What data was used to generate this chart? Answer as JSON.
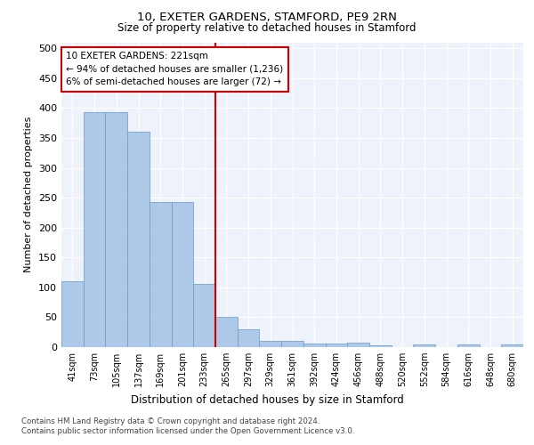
{
  "title1": "10, EXETER GARDENS, STAMFORD, PE9 2RN",
  "title2": "Size of property relative to detached houses in Stamford",
  "xlabel": "Distribution of detached houses by size in Stamford",
  "ylabel": "Number of detached properties",
  "bins": [
    "41sqm",
    "73sqm",
    "105sqm",
    "137sqm",
    "169sqm",
    "201sqm",
    "233sqm",
    "265sqm",
    "297sqm",
    "329sqm",
    "361sqm",
    "392sqm",
    "424sqm",
    "456sqm",
    "488sqm",
    "520sqm",
    "552sqm",
    "584sqm",
    "616sqm",
    "648sqm",
    "680sqm"
  ],
  "values": [
    110,
    393,
    393,
    360,
    243,
    242,
    105,
    50,
    30,
    10,
    10,
    6,
    6,
    7,
    3,
    0,
    5,
    0,
    4,
    0,
    4
  ],
  "bar_color": "#aec8e8",
  "bar_edge_color": "#6699cc",
  "vline_color": "#cc0000",
  "vline_bin": 6,
  "annotation_text": "10 EXETER GARDENS: 221sqm\n← 94% of detached houses are smaller (1,236)\n6% of semi-detached houses are larger (72) →",
  "annotation_box_color": "#cc0000",
  "ylim": [
    0,
    510
  ],
  "yticks": [
    0,
    50,
    100,
    150,
    200,
    250,
    300,
    350,
    400,
    450,
    500
  ],
  "footer1": "Contains HM Land Registry data © Crown copyright and database right 2024.",
  "footer2": "Contains public sector information licensed under the Open Government Licence v3.0.",
  "plot_bg_color": "#eef2fb"
}
